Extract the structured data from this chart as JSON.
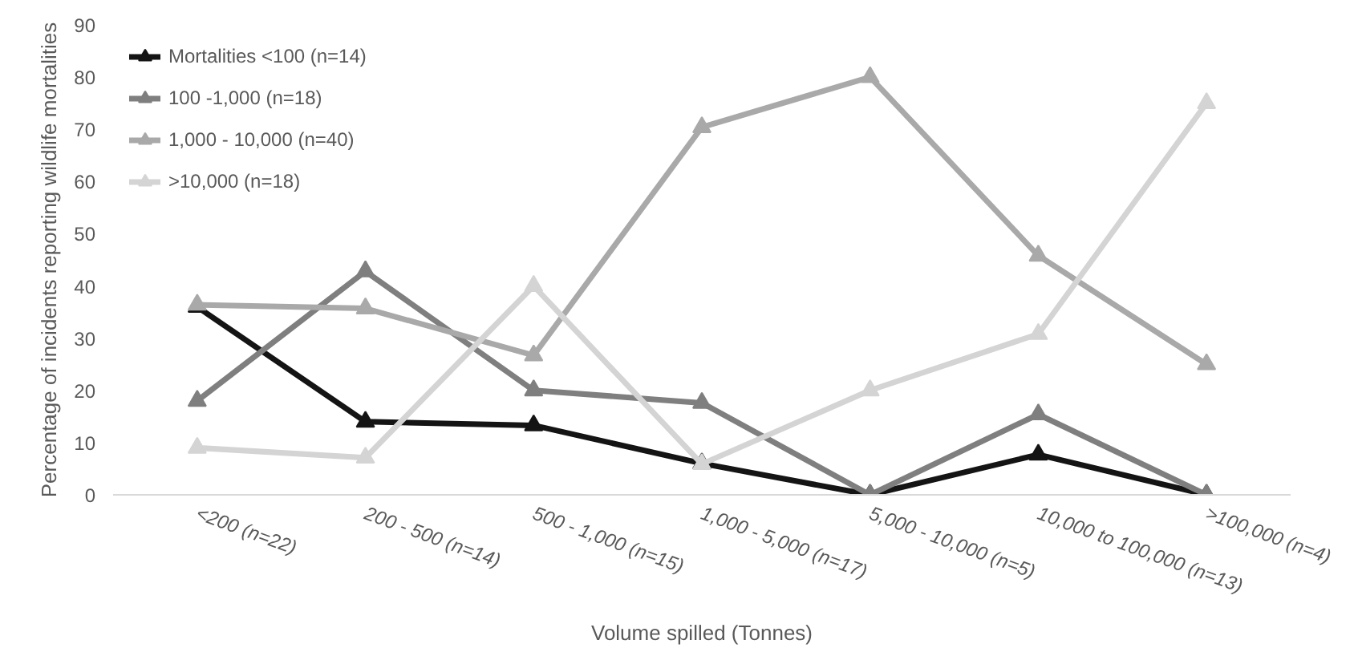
{
  "chart_data": {
    "type": "line",
    "xlabel": "Volume spilled (Tonnes)",
    "ylabel": "Percentage of incidents reporting wildlife mortalities",
    "categories": [
      "<200 (n=22)",
      "200 - 500 (n=14)",
      "500 - 1,000 (n=15)",
      "1,000 - 5,000 (n=17)",
      "5,000 - 10,000 (n=5)",
      "10,000 to 100,000 (n=13)",
      ">100,000 (n=4)"
    ],
    "series": [
      {
        "name": "Mortalities <100 (n=14)",
        "color": "#141414",
        "values": [
          36,
          14,
          13.3,
          6,
          0,
          7.7,
          0
        ]
      },
      {
        "name": "100 -1,000 (n=18)",
        "color": "#7f7f7f",
        "values": [
          18,
          42.8,
          20,
          17.6,
          0,
          15.4,
          0
        ]
      },
      {
        "name": "1,000 - 10,000 (n=40)",
        "color": "#a9a9a9",
        "values": [
          36.4,
          35.7,
          26.7,
          70.4,
          80,
          45.8,
          25
        ]
      },
      {
        "name": ">10,000 (n=18)",
        "color": "#d4d4d4",
        "values": [
          9,
          7.1,
          40,
          5.9,
          20,
          30.8,
          75
        ]
      }
    ],
    "ylim": [
      0,
      90
    ],
    "yticks": [
      0,
      10,
      20,
      30,
      40,
      50,
      60,
      70,
      80,
      90
    ],
    "grid": false,
    "legend": "top left",
    "marker": "triangle",
    "line_style": "solid"
  }
}
